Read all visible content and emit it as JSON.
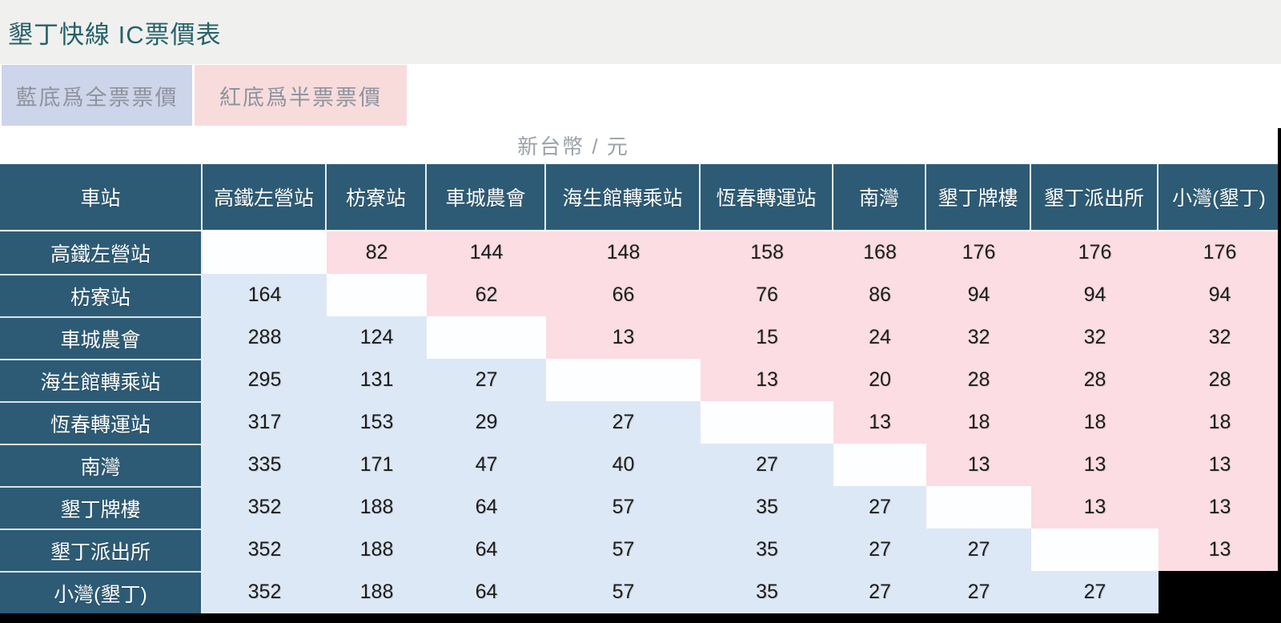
{
  "title": "墾丁快線 IC票價表",
  "legend": {
    "full_fare": "藍底爲全票票價",
    "half_fare": "紅底爲半票票價"
  },
  "currency_note": "新台幣 / 元",
  "chart_data": {
    "type": "table",
    "title": "墾丁快線 IC票價表",
    "unit": "新台幣 / 元",
    "corner_header": "車站",
    "stations": [
      "高鐵左營站",
      "枋寮站",
      "車城農會",
      "海生館轉乘站",
      "恆春轉運站",
      "南灣",
      "墾丁牌樓",
      "墾丁派出所",
      "小灣(墾丁)"
    ],
    "upper_triangle_meaning": "半票票價 (紅底)",
    "lower_triangle_meaning": "全票票價 (藍底)",
    "matrix": [
      [
        null,
        82,
        144,
        148,
        158,
        168,
        176,
        176,
        176
      ],
      [
        164,
        null,
        62,
        66,
        76,
        86,
        94,
        94,
        94
      ],
      [
        288,
        124,
        null,
        13,
        15,
        24,
        32,
        32,
        32
      ],
      [
        295,
        131,
        27,
        null,
        13,
        20,
        28,
        28,
        28
      ],
      [
        317,
        153,
        29,
        27,
        null,
        13,
        18,
        18,
        18
      ],
      [
        335,
        171,
        47,
        40,
        27,
        null,
        13,
        13,
        13
      ],
      [
        352,
        188,
        64,
        57,
        35,
        27,
        null,
        13,
        13
      ],
      [
        352,
        188,
        64,
        57,
        35,
        27,
        27,
        null,
        13
      ],
      [
        352,
        188,
        64,
        57,
        35,
        27,
        27,
        27,
        null
      ]
    ]
  },
  "colors": {
    "header_teal": "#2d5b75",
    "full_fare_blue": "#dde8f6",
    "half_fare_pink": "#fbdde3",
    "legend_blue": "#cdd5ea",
    "legend_pink": "#f8dcdc",
    "top_band_gray": "#f0f0ee",
    "title_teal": "#27626b",
    "black": "#000000"
  }
}
